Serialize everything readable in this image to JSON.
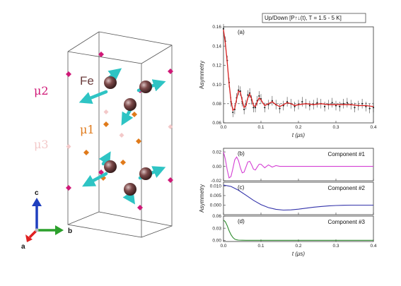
{
  "crystal": {
    "labels": {
      "fe": "Fe",
      "mu1": "μ1",
      "mu2": "μ2",
      "mu3": "μ3"
    },
    "axes": {
      "a": "a",
      "b": "b",
      "c": "c"
    },
    "colors": {
      "fe": "#6b3d3d",
      "arrow": "#2ec4c4",
      "mu1": "#e07a1a",
      "mu2": "#d01877",
      "mu3": "#f3c9c9",
      "axis_a": "#e02020",
      "axis_b": "#2ca02c",
      "axis_c": "#1f3fbf"
    }
  },
  "chart_data": [
    {
      "type": "line",
      "panel": "(a)",
      "title": "Up/Down [P↑↓(t), T = 1.5 - 5 K]",
      "xlabel": "t (μs)",
      "ylabel": "Asymmetry",
      "xlim": [
        0,
        0.4
      ],
      "ylim": [
        0.06,
        0.16
      ],
      "xticks": [
        0.0,
        0.1,
        0.2,
        0.3,
        0.4
      ],
      "yticks": [
        0.06,
        0.08,
        0.1,
        0.12,
        0.14,
        0.16
      ],
      "baseline": 0.08,
      "series": [
        {
          "role": "data",
          "x": [
            0.0,
            0.005,
            0.01,
            0.015,
            0.02,
            0.025,
            0.03,
            0.035,
            0.04,
            0.045,
            0.05,
            0.055,
            0.06,
            0.065,
            0.07,
            0.075,
            0.08,
            0.085,
            0.09,
            0.095,
            0.1,
            0.11,
            0.12,
            0.13,
            0.14,
            0.15,
            0.16,
            0.17,
            0.18,
            0.19,
            0.2,
            0.21,
            0.22,
            0.23,
            0.24,
            0.25,
            0.26,
            0.27,
            0.28,
            0.29,
            0.3,
            0.31,
            0.32,
            0.33,
            0.34,
            0.35,
            0.36,
            0.37,
            0.38,
            0.39,
            0.4
          ],
          "y": [
            0.158,
            0.145,
            0.125,
            0.102,
            0.082,
            0.071,
            0.074,
            0.086,
            0.094,
            0.093,
            0.082,
            0.074,
            0.079,
            0.089,
            0.091,
            0.084,
            0.076,
            0.076,
            0.083,
            0.088,
            0.085,
            0.076,
            0.079,
            0.083,
            0.079,
            0.075,
            0.078,
            0.082,
            0.08,
            0.077,
            0.079,
            0.082,
            0.08,
            0.078,
            0.079,
            0.081,
            0.08,
            0.077,
            0.079,
            0.081,
            0.078,
            0.077,
            0.08,
            0.081,
            0.079,
            0.076,
            0.078,
            0.08,
            0.077,
            0.075,
            0.076
          ],
          "error": 0.005,
          "color": "#222222"
        },
        {
          "role": "fit",
          "x": [
            0.0,
            0.005,
            0.01,
            0.015,
            0.02,
            0.025,
            0.03,
            0.035,
            0.04,
            0.045,
            0.05,
            0.055,
            0.06,
            0.065,
            0.07,
            0.075,
            0.08,
            0.085,
            0.09,
            0.095,
            0.1,
            0.11,
            0.12,
            0.13,
            0.14,
            0.15,
            0.16,
            0.17,
            0.18,
            0.19,
            0.2,
            0.22,
            0.24,
            0.26,
            0.28,
            0.3,
            0.32,
            0.34,
            0.36,
            0.38,
            0.4
          ],
          "y": [
            0.157,
            0.143,
            0.123,
            0.101,
            0.083,
            0.073,
            0.075,
            0.085,
            0.093,
            0.092,
            0.083,
            0.076,
            0.078,
            0.086,
            0.09,
            0.085,
            0.078,
            0.077,
            0.082,
            0.086,
            0.084,
            0.078,
            0.08,
            0.082,
            0.079,
            0.077,
            0.079,
            0.081,
            0.08,
            0.078,
            0.079,
            0.08,
            0.079,
            0.08,
            0.079,
            0.079,
            0.079,
            0.079,
            0.078,
            0.078,
            0.077
          ],
          "color": "#d81e1e"
        }
      ]
    },
    {
      "type": "line",
      "panel": "(b)",
      "label": "Component #1",
      "xlim": [
        0,
        0.4
      ],
      "ylim": [
        -0.02,
        0.025
      ],
      "yticks": [
        -0.02,
        0.0,
        0.02
      ],
      "series": [
        {
          "x": [
            0.0,
            0.005,
            0.01,
            0.015,
            0.02,
            0.025,
            0.03,
            0.035,
            0.04,
            0.045,
            0.05,
            0.055,
            0.06,
            0.065,
            0.07,
            0.075,
            0.08,
            0.085,
            0.09,
            0.095,
            0.1,
            0.11,
            0.12,
            0.13,
            0.14,
            0.15,
            0.175,
            0.2,
            0.25,
            0.3,
            0.35,
            0.4
          ],
          "y": [
            0.02,
            0.01,
            -0.005,
            -0.016,
            -0.014,
            -0.003,
            0.009,
            0.013,
            0.008,
            -0.002,
            -0.009,
            -0.008,
            -0.001,
            0.006,
            0.007,
            0.002,
            -0.004,
            -0.005,
            -0.001,
            0.003,
            0.003,
            -0.002,
            0.002,
            -0.001,
            0.001,
            0.0,
            0.0,
            0.0,
            0.0,
            0.0,
            0.0,
            0.0
          ],
          "color": "#d43fd4"
        }
      ]
    },
    {
      "type": "line",
      "panel": "(c)",
      "label": "Component #2",
      "ylabel": "Asymmetry",
      "xlim": [
        0,
        0.4
      ],
      "ylim": [
        -0.005,
        0.012
      ],
      "yticks": [
        0.0,
        0.005,
        0.01
      ],
      "series": [
        {
          "x": [
            0.0,
            0.02,
            0.04,
            0.06,
            0.08,
            0.1,
            0.12,
            0.14,
            0.16,
            0.18,
            0.2,
            0.22,
            0.24,
            0.26,
            0.28,
            0.3,
            0.32,
            0.34,
            0.36,
            0.38,
            0.4
          ],
          "y": [
            0.0105,
            0.0098,
            0.0078,
            0.0052,
            0.0025,
            0.0003,
            -0.0013,
            -0.0022,
            -0.0026,
            -0.0025,
            -0.0021,
            -0.0016,
            -0.0011,
            -0.0007,
            -0.0004,
            -0.0002,
            -0.0001,
            0.0,
            0.0,
            0.0,
            0.0
          ],
          "color": "#3333aa"
        }
      ]
    },
    {
      "type": "line",
      "panel": "(d)",
      "label": "Component #3",
      "xlabel": "t (μs)",
      "xlim": [
        0,
        0.4
      ],
      "ylim": [
        -0.003,
        0.06
      ],
      "xticks": [
        0.0,
        0.1,
        0.2,
        0.3,
        0.4
      ],
      "yticks": [
        0.0,
        0.03,
        0.06
      ],
      "series": [
        {
          "x": [
            0.0,
            0.005,
            0.01,
            0.015,
            0.02,
            0.025,
            0.03,
            0.035,
            0.04,
            0.05,
            0.06,
            0.08,
            0.1,
            0.15,
            0.2,
            0.3,
            0.4
          ],
          "y": [
            0.05,
            0.046,
            0.036,
            0.024,
            0.014,
            0.007,
            0.003,
            0.0012,
            0.0005,
            0.0001,
            0.0,
            0.0,
            0.0,
            0.0,
            0.0,
            0.0,
            0.0
          ],
          "color": "#2e8b2e"
        }
      ]
    }
  ]
}
